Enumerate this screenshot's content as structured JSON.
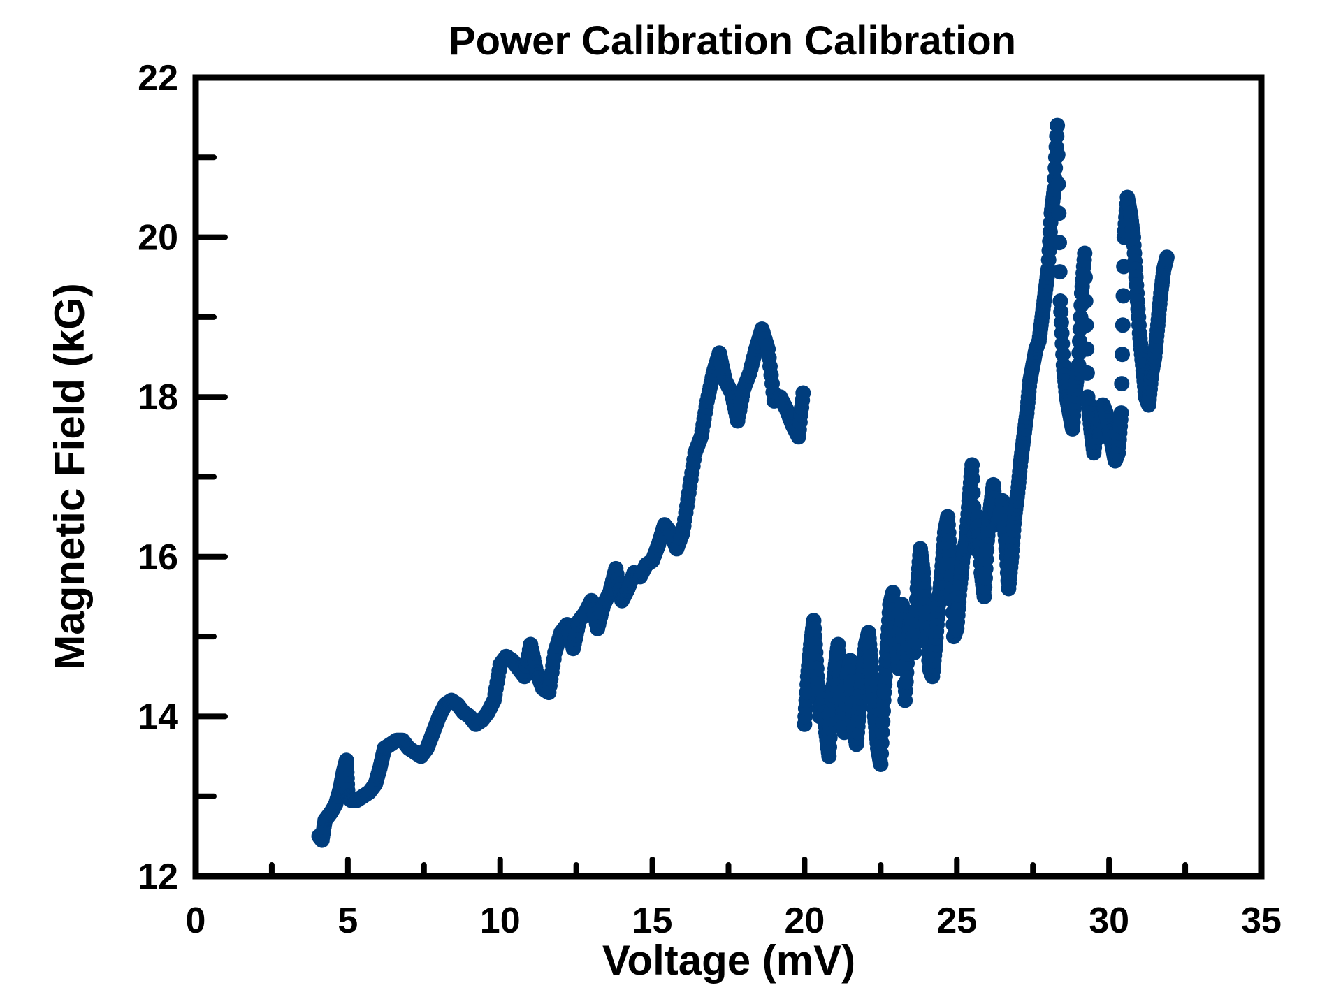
{
  "chart_data": {
    "type": "scatter",
    "title": "Power Calibration Calibration",
    "xlabel": "Voltage (mV)",
    "ylabel": "Magnetic Field (kG)",
    "xlim": [
      0,
      35
    ],
    "ylim": [
      12,
      22
    ],
    "x_major_ticks": [
      0,
      5,
      10,
      15,
      20,
      25,
      30,
      35
    ],
    "x_tick_labels": [
      "0",
      "5",
      "10",
      "15",
      "20",
      "25",
      "30",
      "35"
    ],
    "x_minor_ticks": [
      2.5,
      7.5,
      12.5,
      17.5,
      22.5,
      27.5,
      32.5
    ],
    "y_major_ticks": [
      12,
      14,
      16,
      18,
      20,
      22
    ],
    "y_tick_labels": [
      "12",
      "14",
      "16",
      "18",
      "20",
      "22"
    ],
    "y_minor_ticks": [
      13,
      15,
      17,
      19,
      21
    ],
    "grid": false,
    "marker_color": "#003d7d",
    "series": [
      {
        "x": [
          4.05,
          4.15,
          4.25,
          4.35,
          4.45,
          4.6,
          4.75,
          4.85,
          4.95,
          5.0,
          5.1,
          5.3,
          5.5,
          5.7,
          5.9,
          6.05,
          6.2,
          6.4,
          6.6,
          6.8,
          7.0,
          7.2,
          7.4,
          7.6,
          7.8,
          8.0,
          8.2,
          8.4,
          8.6,
          8.8,
          9.0,
          9.2,
          9.4,
          9.6,
          9.8,
          10.0,
          10.2,
          10.4,
          10.6,
          10.8,
          11.0,
          11.2,
          11.4,
          11.6,
          11.8,
          12.0,
          12.2,
          12.4,
          12.6,
          12.8,
          13.0,
          13.2,
          13.4,
          13.6,
          13.8,
          14.0,
          14.2,
          14.4,
          14.6,
          14.8,
          15.0,
          15.2,
          15.4,
          15.6,
          15.8,
          16.0,
          16.2,
          16.4,
          16.6,
          16.8,
          17.0,
          17.2,
          17.4,
          17.6,
          17.8,
          18.0,
          18.2,
          18.4,
          18.6,
          18.8,
          19.0,
          19.2,
          19.4,
          19.6,
          19.8,
          19.95
        ],
        "y": [
          12.5,
          12.45,
          12.7,
          12.75,
          12.8,
          12.9,
          13.1,
          13.3,
          13.45,
          13.0,
          12.95,
          12.95,
          13.0,
          13.05,
          13.15,
          13.35,
          13.6,
          13.65,
          13.7,
          13.7,
          13.6,
          13.55,
          13.5,
          13.6,
          13.8,
          14.0,
          14.15,
          14.2,
          14.15,
          14.05,
          14.0,
          13.9,
          13.95,
          14.05,
          14.2,
          14.65,
          14.75,
          14.7,
          14.6,
          14.5,
          14.9,
          14.55,
          14.35,
          14.3,
          14.8,
          15.05,
          15.15,
          14.85,
          15.2,
          15.3,
          15.45,
          15.1,
          15.4,
          15.55,
          15.85,
          15.45,
          15.6,
          15.8,
          15.75,
          15.9,
          15.95,
          16.15,
          16.4,
          16.3,
          16.1,
          16.3,
          16.8,
          17.3,
          17.5,
          17.95,
          18.3,
          18.55,
          18.2,
          18.05,
          17.7,
          18.1,
          18.3,
          18.6,
          18.85,
          18.6,
          17.95,
          18.0,
          17.85,
          17.65,
          17.5,
          18.05
        ]
      },
      {
        "x": [
          20.0,
          20.1,
          20.2,
          20.3,
          20.4,
          20.5,
          20.6,
          20.7,
          20.8,
          20.9,
          21.0,
          21.1,
          21.2,
          21.3,
          21.4,
          21.5,
          21.6,
          21.7,
          21.8,
          21.9,
          22.0,
          22.1,
          22.2,
          22.3,
          22.4,
          22.5,
          22.6,
          22.7,
          22.8,
          22.9,
          23.0,
          23.1,
          23.2,
          23.3,
          23.4,
          23.5,
          23.6,
          23.7,
          23.8,
          23.9,
          24.0,
          24.1,
          24.2,
          24.3,
          24.4,
          24.5,
          24.6,
          24.7,
          24.8,
          24.9,
          25.0,
          25.1,
          25.2,
          25.3,
          25.4,
          25.5,
          25.6,
          25.7,
          25.8,
          25.9,
          26.0,
          26.1,
          26.2,
          26.3,
          26.4,
          26.5,
          26.6,
          26.7,
          26.8,
          26.9,
          27.0,
          27.1,
          27.2,
          27.3,
          27.4,
          27.5,
          27.6,
          27.7,
          27.8,
          27.9,
          28.0,
          28.1,
          28.2,
          28.3,
          28.4,
          28.5,
          28.6,
          28.7,
          28.8,
          28.9,
          29.0,
          29.1,
          29.2,
          29.3,
          29.4,
          29.5,
          29.6,
          29.7,
          29.8,
          29.9,
          30.0,
          30.1,
          30.2,
          30.3,
          30.4,
          30.5,
          30.6,
          30.7,
          30.8,
          30.9,
          31.0,
          31.1,
          31.2,
          31.3,
          31.4,
          31.5,
          31.6,
          31.7,
          31.8,
          31.9
        ],
        "y": [
          13.9,
          14.5,
          14.9,
          15.2,
          14.6,
          14.0,
          14.3,
          13.8,
          13.5,
          14.2,
          14.6,
          14.9,
          14.3,
          13.8,
          14.5,
          14.7,
          13.9,
          13.65,
          14.1,
          14.5,
          14.9,
          15.05,
          14.6,
          14.0,
          13.6,
          13.4,
          14.2,
          14.8,
          15.4,
          15.55,
          14.9,
          14.6,
          15.4,
          14.2,
          14.9,
          15.3,
          14.8,
          15.6,
          16.1,
          15.8,
          15.2,
          14.6,
          14.5,
          14.9,
          15.4,
          15.8,
          16.3,
          16.5,
          15.9,
          15.0,
          15.1,
          15.6,
          16.0,
          16.2,
          16.7,
          17.15,
          16.1,
          16.5,
          15.8,
          15.5,
          16.2,
          16.6,
          16.9,
          16.4,
          16.5,
          16.7,
          16.2,
          15.6,
          16.0,
          16.5,
          16.8,
          17.2,
          17.5,
          17.8,
          18.2,
          18.4,
          18.6,
          18.7,
          19.0,
          19.3,
          19.6,
          20.3,
          20.6,
          21.4,
          19.2,
          18.4,
          18.0,
          17.8,
          17.6,
          18.1,
          18.4,
          19.3,
          19.8,
          18.0,
          17.6,
          17.3,
          17.7,
          17.5,
          17.9,
          17.8,
          17.6,
          17.4,
          17.2,
          17.3,
          17.8,
          20.0,
          20.5,
          20.3,
          20.0,
          19.4,
          18.8,
          18.4,
          18.0,
          17.9,
          18.3,
          18.5,
          18.9,
          19.3,
          19.6,
          19.75
        ]
      }
    ]
  }
}
